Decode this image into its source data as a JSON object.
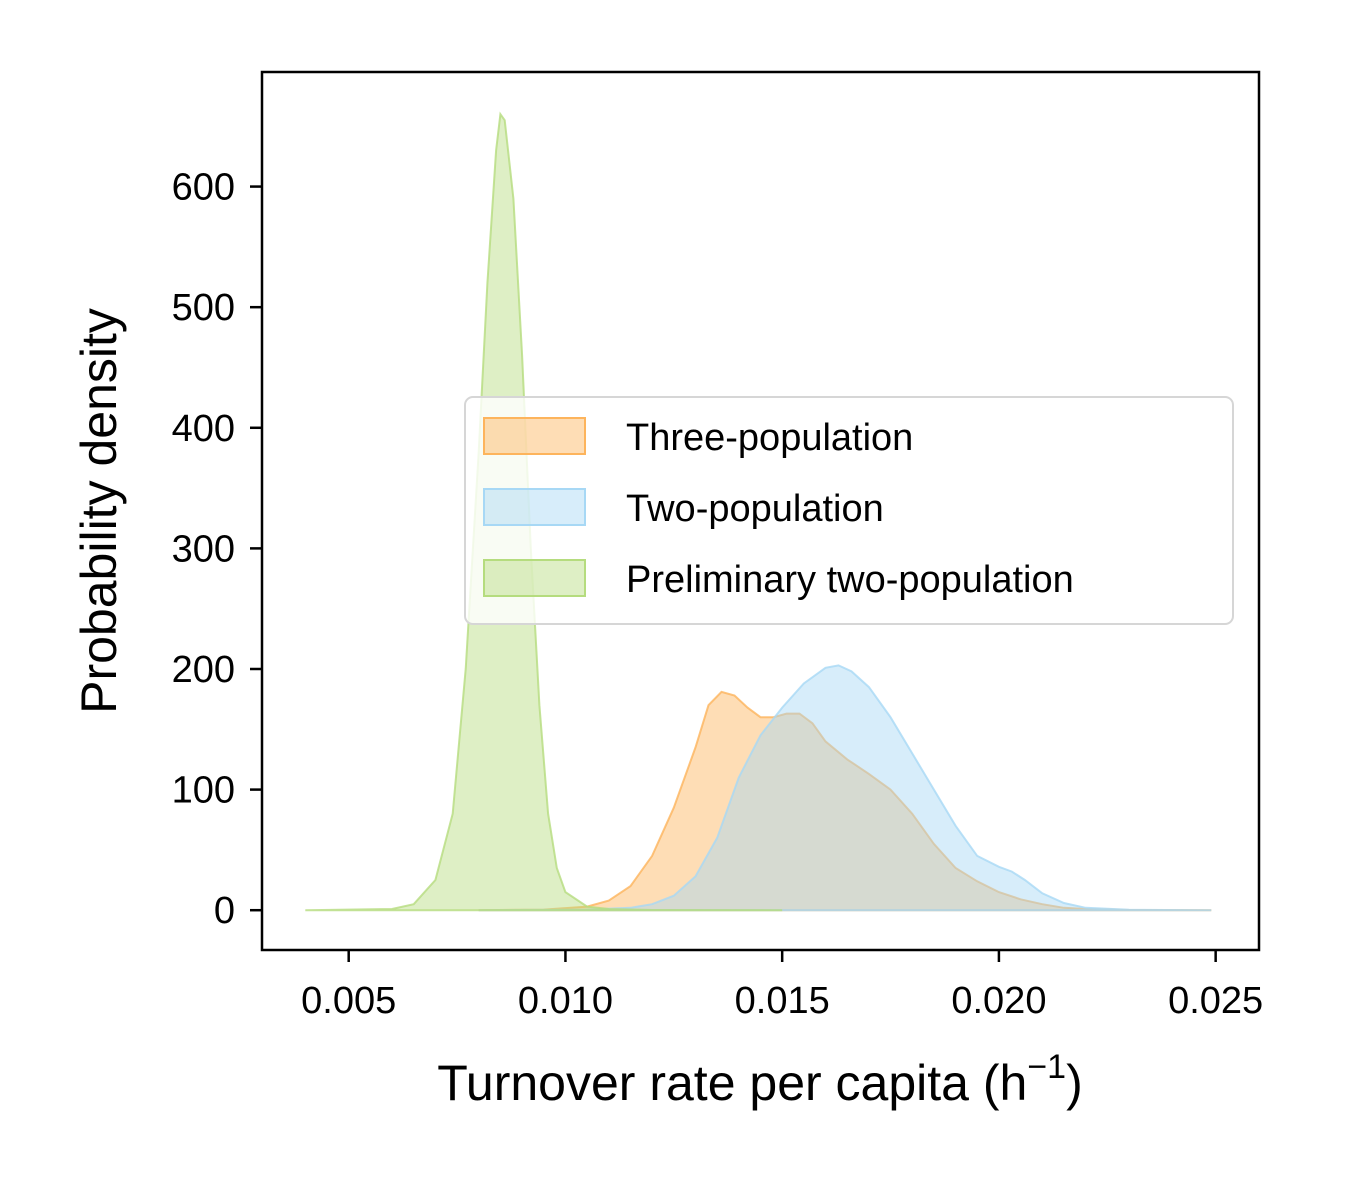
{
  "chart_data": {
    "type": "area",
    "xlabel": "Turnover rate per capita (h",
    "xlabel_sup": "−1",
    "xlabel_suffix": ")",
    "ylabel": "Probability density",
    "xlim": [
      0.003,
      0.026
    ],
    "ylim": [
      -33,
      695
    ],
    "x_ticks": [
      0.005,
      0.01,
      0.015,
      0.02,
      0.025
    ],
    "x_tick_labels": [
      "0.005",
      "0.010",
      "0.015",
      "0.020",
      "0.025"
    ],
    "y_ticks": [
      0,
      100,
      200,
      300,
      400,
      500,
      600
    ],
    "y_tick_labels": [
      "0",
      "100",
      "200",
      "300",
      "400",
      "500",
      "600"
    ],
    "grid": false,
    "legend_position": "center-right",
    "series": [
      {
        "name": "Three-population",
        "color": "#fdb45c",
        "points": [
          [
            0.008,
            0
          ],
          [
            0.0095,
            0.5
          ],
          [
            0.0105,
            3
          ],
          [
            0.011,
            8
          ],
          [
            0.0115,
            20
          ],
          [
            0.012,
            45
          ],
          [
            0.0125,
            85
          ],
          [
            0.013,
            135
          ],
          [
            0.0133,
            170
          ],
          [
            0.0136,
            181
          ],
          [
            0.0139,
            178
          ],
          [
            0.0142,
            168
          ],
          [
            0.0145,
            160
          ],
          [
            0.0148,
            160
          ],
          [
            0.0151,
            163
          ],
          [
            0.0154,
            163
          ],
          [
            0.0157,
            155
          ],
          [
            0.016,
            140
          ],
          [
            0.0165,
            125
          ],
          [
            0.017,
            113
          ],
          [
            0.0175,
            100
          ],
          [
            0.018,
            80
          ],
          [
            0.0185,
            55
          ],
          [
            0.019,
            35
          ],
          [
            0.0195,
            24
          ],
          [
            0.02,
            15
          ],
          [
            0.0205,
            9
          ],
          [
            0.021,
            5
          ],
          [
            0.0215,
            2
          ],
          [
            0.022,
            1
          ],
          [
            0.023,
            0.2
          ],
          [
            0.0249,
            0
          ]
        ]
      },
      {
        "name": "Two-population",
        "color": "#a7d8f5",
        "points": [
          [
            0.008,
            0
          ],
          [
            0.0105,
            0.5
          ],
          [
            0.0115,
            2
          ],
          [
            0.012,
            5
          ],
          [
            0.0125,
            12
          ],
          [
            0.013,
            28
          ],
          [
            0.0135,
            60
          ],
          [
            0.014,
            110
          ],
          [
            0.0145,
            145
          ],
          [
            0.015,
            168
          ],
          [
            0.0155,
            188
          ],
          [
            0.016,
            201
          ],
          [
            0.0163,
            203
          ],
          [
            0.0166,
            198
          ],
          [
            0.017,
            185
          ],
          [
            0.0175,
            160
          ],
          [
            0.018,
            130
          ],
          [
            0.0185,
            100
          ],
          [
            0.019,
            70
          ],
          [
            0.0195,
            45
          ],
          [
            0.02,
            36
          ],
          [
            0.0203,
            32
          ],
          [
            0.0206,
            25
          ],
          [
            0.021,
            14
          ],
          [
            0.0215,
            6
          ],
          [
            0.022,
            2
          ],
          [
            0.023,
            0.3
          ],
          [
            0.0249,
            0
          ]
        ]
      },
      {
        "name": "Preliminary two-population",
        "color": "#b5dc7e",
        "points": [
          [
            0.004,
            0
          ],
          [
            0.006,
            1
          ],
          [
            0.0065,
            5
          ],
          [
            0.007,
            25
          ],
          [
            0.0074,
            80
          ],
          [
            0.0077,
            200
          ],
          [
            0.008,
            380
          ],
          [
            0.0082,
            520
          ],
          [
            0.0084,
            630
          ],
          [
            0.0085,
            660
          ],
          [
            0.0086,
            655
          ],
          [
            0.0088,
            590
          ],
          [
            0.009,
            460
          ],
          [
            0.0092,
            300
          ],
          [
            0.0094,
            170
          ],
          [
            0.0096,
            80
          ],
          [
            0.0098,
            35
          ],
          [
            0.01,
            15
          ],
          [
            0.0105,
            3
          ],
          [
            0.011,
            1
          ],
          [
            0.012,
            0.2
          ],
          [
            0.015,
            0
          ]
        ]
      }
    ]
  }
}
